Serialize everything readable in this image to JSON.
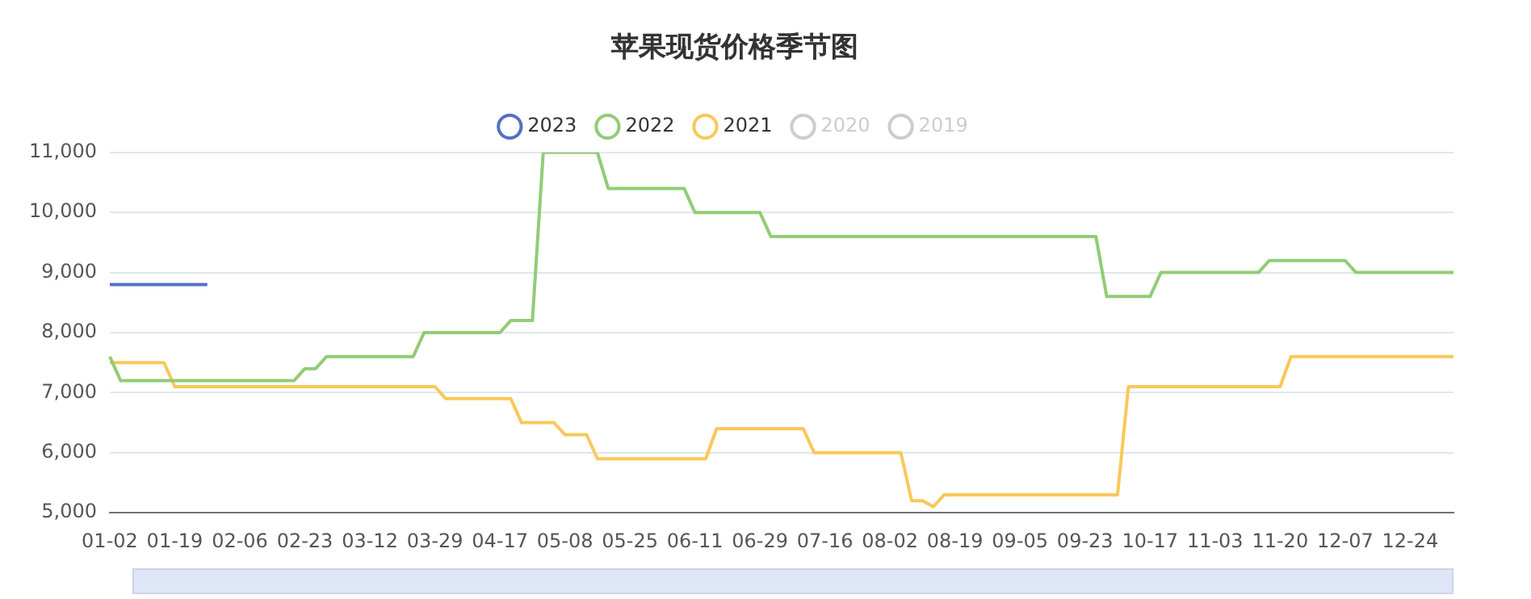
{
  "chart_data": {
    "type": "line",
    "title": "苹果现货价格季节图",
    "categories": [
      "01-02",
      null,
      null,
      null,
      null,
      null,
      "01-19",
      null,
      null,
      null,
      null,
      null,
      "02-06",
      null,
      null,
      null,
      null,
      null,
      "02-23",
      null,
      null,
      null,
      null,
      null,
      "03-12",
      null,
      null,
      null,
      null,
      null,
      "03-29",
      null,
      null,
      null,
      null,
      null,
      "04-17",
      null,
      null,
      null,
      null,
      null,
      "05-08",
      null,
      null,
      null,
      null,
      null,
      "05-25",
      null,
      null,
      null,
      null,
      null,
      "06-11",
      null,
      null,
      null,
      null,
      null,
      "06-29",
      null,
      null,
      null,
      null,
      null,
      "07-16",
      null,
      null,
      null,
      null,
      null,
      "08-02",
      null,
      null,
      null,
      null,
      null,
      "08-19",
      null,
      null,
      null,
      null,
      null,
      "09-05",
      null,
      null,
      null,
      null,
      null,
      "09-23",
      null,
      null,
      null,
      null,
      null,
      "10-17",
      null,
      null,
      null,
      null,
      null,
      "11-03",
      null,
      null,
      null,
      null,
      null,
      "11-20",
      null,
      null,
      null,
      null,
      null,
      "12-07",
      null,
      null,
      null,
      null,
      null,
      "12-24",
      null,
      null,
      null,
      null
    ],
    "series": [
      {
        "name": "2023",
        "color": "#5470c6",
        "values": [
          8800,
          8800,
          8800,
          8800,
          8800,
          8800,
          8800,
          8800,
          8800,
          8800,
          null,
          null,
          null,
          null,
          null,
          null,
          null,
          null,
          null,
          null,
          null,
          null,
          null,
          null,
          null,
          null,
          null,
          null,
          null,
          null,
          null,
          null,
          null,
          null,
          null,
          null,
          null,
          null,
          null,
          null,
          null,
          null,
          null,
          null,
          null,
          null,
          null,
          null,
          null,
          null,
          null,
          null,
          null,
          null,
          null,
          null,
          null,
          null,
          null,
          null,
          null,
          null,
          null,
          null,
          null,
          null,
          null,
          null,
          null,
          null,
          null,
          null,
          null,
          null,
          null,
          null,
          null,
          null,
          null,
          null,
          null,
          null,
          null,
          null,
          null,
          null,
          null,
          null,
          null,
          null,
          null,
          null,
          null,
          null,
          null,
          null,
          null,
          null,
          null,
          null,
          null,
          null,
          null,
          null,
          null,
          null,
          null,
          null,
          null,
          null,
          null,
          null,
          null,
          null,
          null,
          null,
          null,
          null,
          null,
          null,
          null,
          null,
          null,
          null,
          null
        ]
      },
      {
        "name": "2022",
        "color": "#91cc75",
        "values": [
          7600,
          7200,
          7200,
          7200,
          7200,
          7200,
          7200,
          7200,
          7200,
          7200,
          7200,
          7200,
          7200,
          7200,
          7200,
          7200,
          7200,
          7200,
          7400,
          7400,
          7600,
          7600,
          7600,
          7600,
          7600,
          7600,
          7600,
          7600,
          7600,
          8000,
          8000,
          8000,
          8000,
          8000,
          8000,
          8000,
          8000,
          8200,
          8200,
          8200,
          11000,
          11000,
          11000,
          11000,
          11000,
          11000,
          10400,
          10400,
          10400,
          10400,
          10400,
          10400,
          10400,
          10400,
          10000,
          10000,
          10000,
          10000,
          10000,
          10000,
          10000,
          9600,
          9600,
          9600,
          9600,
          9600,
          9600,
          9600,
          9600,
          9600,
          9600,
          9600,
          9600,
          9600,
          9600,
          9600,
          9600,
          9600,
          9600,
          9600,
          9600,
          9600,
          9600,
          9600,
          9600,
          9600,
          9600,
          9600,
          9600,
          9600,
          9600,
          9600,
          8600,
          8600,
          8600,
          8600,
          8600,
          9000,
          9000,
          9000,
          9000,
          9000,
          9000,
          9000,
          9000,
          9000,
          9000,
          9200,
          9200,
          9200,
          9200,
          9200,
          9200,
          9200,
          9200,
          9000,
          9000,
          9000,
          9000,
          9000,
          9000,
          9000,
          9000,
          9000,
          9000
        ]
      },
      {
        "name": "2021",
        "color": "#fac858",
        "values": [
          7500,
          7500,
          7500,
          7500,
          7500,
          7500,
          7100,
          7100,
          7100,
          7100,
          7100,
          7100,
          7100,
          7100,
          7100,
          7100,
          7100,
          7100,
          7100,
          7100,
          7100,
          7100,
          7100,
          7100,
          7100,
          7100,
          7100,
          7100,
          7100,
          7100,
          7100,
          6900,
          6900,
          6900,
          6900,
          6900,
          6900,
          6900,
          6500,
          6500,
          6500,
          6500,
          6300,
          6300,
          6300,
          5900,
          5900,
          5900,
          5900,
          5900,
          5900,
          5900,
          5900,
          5900,
          5900,
          5900,
          6400,
          6400,
          6400,
          6400,
          6400,
          6400,
          6400,
          6400,
          6400,
          6000,
          6000,
          6000,
          6000,
          6000,
          6000,
          6000,
          6000,
          6000,
          5200,
          5200,
          5100,
          5300,
          5300,
          5300,
          5300,
          5300,
          5300,
          5300,
          5300,
          5300,
          5300,
          5300,
          5300,
          5300,
          5300,
          5300,
          5300,
          5300,
          7100,
          7100,
          7100,
          7100,
          7100,
          7100,
          7100,
          7100,
          7100,
          7100,
          7100,
          7100,
          7100,
          7100,
          7100,
          7600,
          7600,
          7600,
          7600,
          7600,
          7600,
          7600,
          7600,
          7600,
          7600,
          7600,
          7600,
          7600,
          7600,
          7600,
          7600
        ]
      },
      {
        "name": "2020",
        "color": "#cccccc",
        "values": [
          null,
          null,
          null,
          null,
          null,
          null,
          null,
          null,
          null,
          null,
          null,
          null,
          null,
          null,
          null,
          null,
          null,
          null,
          null,
          null,
          null,
          null,
          null,
          null,
          null,
          null,
          null,
          null,
          null,
          null,
          null,
          null,
          null,
          null,
          null,
          null,
          null,
          null,
          null,
          null,
          null,
          null,
          null,
          null,
          null,
          null,
          null,
          null,
          null,
          null,
          null,
          null,
          null,
          null,
          null,
          null,
          null,
          null,
          null,
          null,
          null,
          null,
          null,
          null,
          null,
          null,
          null,
          null,
          null,
          null,
          null,
          null,
          null,
          null,
          null,
          null,
          null,
          null,
          null,
          null,
          null,
          null,
          null,
          null,
          null,
          null,
          null,
          null,
          null,
          null,
          null,
          null,
          null,
          null,
          null,
          null,
          null,
          null,
          null,
          null,
          null,
          null,
          null,
          null,
          null,
          null,
          null,
          null,
          null,
          null,
          null,
          null,
          null,
          null,
          null,
          null,
          null,
          null,
          null,
          null,
          null,
          null,
          null,
          null,
          null
        ]
      },
      {
        "name": "2019",
        "color": "#cccccc",
        "values": [
          null,
          null,
          null,
          null,
          null,
          null,
          null,
          null,
          null,
          null,
          null,
          null,
          null,
          null,
          null,
          null,
          null,
          null,
          null,
          null,
          null,
          null,
          null,
          null,
          null,
          null,
          null,
          null,
          null,
          null,
          null,
          null,
          null,
          null,
          null,
          null,
          null,
          null,
          null,
          null,
          null,
          null,
          null,
          null,
          null,
          null,
          null,
          null,
          null,
          null,
          null,
          null,
          null,
          null,
          null,
          null,
          null,
          null,
          null,
          null,
          null,
          null,
          null,
          null,
          null,
          null,
          null,
          null,
          null,
          null,
          null,
          null,
          null,
          null,
          null,
          null,
          null,
          null,
          null,
          null,
          null,
          null,
          null,
          null,
          null,
          null,
          null,
          null,
          null,
          null,
          null,
          null,
          null,
          null,
          null,
          null,
          null,
          null,
          null,
          null,
          null,
          null,
          null,
          null,
          null,
          null,
          null,
          null,
          null,
          null,
          null,
          null,
          null,
          null,
          null,
          null,
          null,
          null,
          null,
          null,
          null,
          null,
          null,
          null,
          null
        ]
      }
    ],
    "ylim": [
      5000,
      11000
    ],
    "yticks": [
      {
        "value": 5000,
        "label": "5,000"
      },
      {
        "value": 6000,
        "label": "6,000"
      },
      {
        "value": 7000,
        "label": "7,000"
      },
      {
        "value": 8000,
        "label": "8,000"
      },
      {
        "value": 9000,
        "label": "9,000"
      },
      {
        "value": 10000,
        "label": "10,000"
      },
      {
        "value": 11000,
        "label": "11,000"
      }
    ],
    "grid": "y",
    "legend": "top",
    "marker": "none",
    "line_style": "solid"
  }
}
